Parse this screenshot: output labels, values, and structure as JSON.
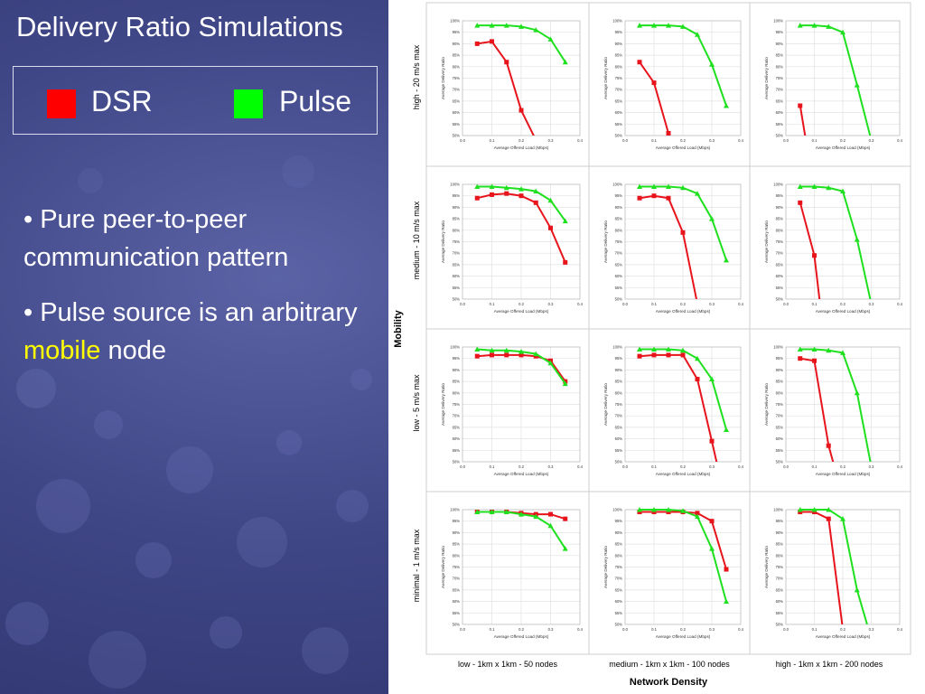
{
  "slide": {
    "title": "Delivery Ratio Simulations",
    "legend": [
      {
        "label": "DSR",
        "color": "#ff0000"
      },
      {
        "label": "Pulse",
        "color": "#00ff00"
      }
    ],
    "bullets": [
      {
        "prefix": "• Pure peer-to-peer communication pattern",
        "highlight": "",
        "suffix": ""
      },
      {
        "prefix": "• Pulse source is an arbitrary ",
        "highlight": "mobile",
        "suffix": " node"
      }
    ],
    "highlight_color": "#ffff00"
  },
  "chart_data": {
    "type": "line",
    "y_axis_title": "Mobility",
    "x_axis_title": "Network Density",
    "row_labels": [
      "high - 20 m/s max",
      "medium - 10 m/s max",
      "low - 5 m/s max",
      "minimal - 1 m/s max"
    ],
    "col_labels": [
      "low - 1km x 1km - 50 nodes",
      "medium - 1km x 1km - 100 nodes",
      "high - 1km x 1km - 200 nodes"
    ],
    "panel_xlabel": "Average Offered Load (Mbps)",
    "panel_ylabel": "Average Delivery Ratio",
    "x_ticks": [
      "0.0",
      "0.1",
      "0.2",
      "0.3",
      "0.4"
    ],
    "y_ticks": [
      "100%",
      "95%",
      "90%",
      "85%",
      "80%",
      "75%",
      "70%",
      "65%",
      "60%",
      "55%",
      "50%"
    ],
    "xlim": [
      0,
      0.4
    ],
    "ylim": [
      50,
      100
    ],
    "grid": true,
    "series_colors": {
      "DSR": "#e8141c",
      "Pulse": "#1fe01f"
    },
    "panels": [
      {
        "row": 0,
        "col": 0,
        "series": [
          {
            "name": "DSR",
            "x": [
              0.05,
              0.1,
              0.15,
              0.2,
              0.25
            ],
            "y": [
              90,
              91,
              82,
              61,
              48
            ]
          },
          {
            "name": "Pulse",
            "x": [
              0.05,
              0.1,
              0.15,
              0.2,
              0.25,
              0.3,
              0.35
            ],
            "y": [
              98,
              98,
              98,
              97.5,
              96,
              92,
              82
            ]
          }
        ]
      },
      {
        "row": 0,
        "col": 1,
        "series": [
          {
            "name": "DSR",
            "x": [
              0.05,
              0.1,
              0.15
            ],
            "y": [
              82,
              73,
              51
            ]
          },
          {
            "name": "Pulse",
            "x": [
              0.05,
              0.1,
              0.15,
              0.2,
              0.25,
              0.3,
              0.35
            ],
            "y": [
              98,
              98,
              98,
              97.5,
              94,
              81,
              63
            ]
          }
        ]
      },
      {
        "row": 0,
        "col": 2,
        "series": [
          {
            "name": "DSR",
            "x": [
              0.05,
              0.07
            ],
            "y": [
              63,
              48
            ]
          },
          {
            "name": "Pulse",
            "x": [
              0.05,
              0.1,
              0.15,
              0.2,
              0.25,
              0.3
            ],
            "y": [
              98,
              98,
              97.5,
              95,
              72,
              48
            ]
          }
        ]
      },
      {
        "row": 1,
        "col": 0,
        "series": [
          {
            "name": "DSR",
            "x": [
              0.05,
              0.1,
              0.15,
              0.2,
              0.25,
              0.3,
              0.35
            ],
            "y": [
              94,
              95.5,
              96,
              95,
              92,
              81,
              66
            ]
          },
          {
            "name": "Pulse",
            "x": [
              0.05,
              0.1,
              0.15,
              0.2,
              0.25,
              0.3,
              0.35
            ],
            "y": [
              99,
              99,
              98.5,
              98,
              97,
              93,
              84
            ]
          }
        ]
      },
      {
        "row": 1,
        "col": 1,
        "series": [
          {
            "name": "DSR",
            "x": [
              0.05,
              0.1,
              0.15,
              0.2,
              0.25
            ],
            "y": [
              94,
              95,
              94,
              79,
              48
            ]
          },
          {
            "name": "Pulse",
            "x": [
              0.05,
              0.1,
              0.15,
              0.2,
              0.25,
              0.3,
              0.35
            ],
            "y": [
              99,
              99,
              99,
              98.5,
              96,
              85,
              67
            ]
          }
        ]
      },
      {
        "row": 1,
        "col": 2,
        "series": [
          {
            "name": "DSR",
            "x": [
              0.05,
              0.1,
              0.12
            ],
            "y": [
              92,
              69,
              48
            ]
          },
          {
            "name": "Pulse",
            "x": [
              0.05,
              0.1,
              0.15,
              0.2,
              0.25,
              0.3
            ],
            "y": [
              99,
              99,
              98.5,
              97,
              76,
              48
            ]
          }
        ]
      },
      {
        "row": 2,
        "col": 0,
        "series": [
          {
            "name": "DSR",
            "x": [
              0.05,
              0.1,
              0.15,
              0.2,
              0.25,
              0.3,
              0.35
            ],
            "y": [
              96,
              96.5,
              96.5,
              96.5,
              96,
              94,
              85
            ]
          },
          {
            "name": "Pulse",
            "x": [
              0.05,
              0.1,
              0.15,
              0.2,
              0.25,
              0.3,
              0.35
            ],
            "y": [
              99,
              98.5,
              98.5,
              98,
              97,
              93,
              84
            ]
          }
        ]
      },
      {
        "row": 2,
        "col": 1,
        "series": [
          {
            "name": "DSR",
            "x": [
              0.05,
              0.1,
              0.15,
              0.2,
              0.25,
              0.3,
              0.32
            ],
            "y": [
              96,
              96.5,
              96.5,
              96.5,
              86,
              59,
              48
            ]
          },
          {
            "name": "Pulse",
            "x": [
              0.05,
              0.1,
              0.15,
              0.2,
              0.25,
              0.3,
              0.35
            ],
            "y": [
              99,
              99,
              99,
              98.5,
              95,
              86,
              64
            ]
          }
        ]
      },
      {
        "row": 2,
        "col": 2,
        "series": [
          {
            "name": "DSR",
            "x": [
              0.05,
              0.1,
              0.15,
              0.17
            ],
            "y": [
              95,
              94,
              57,
              48
            ]
          },
          {
            "name": "Pulse",
            "x": [
              0.05,
              0.1,
              0.15,
              0.2,
              0.25,
              0.3
            ],
            "y": [
              99,
              99,
              98.5,
              97.5,
              80,
              48
            ]
          }
        ]
      },
      {
        "row": 3,
        "col": 0,
        "series": [
          {
            "name": "DSR",
            "x": [
              0.05,
              0.1,
              0.15,
              0.2,
              0.25,
              0.3,
              0.35
            ],
            "y": [
              99,
              99,
              99,
              98.5,
              98,
              98,
              96
            ]
          },
          {
            "name": "Pulse",
            "x": [
              0.05,
              0.1,
              0.15,
              0.2,
              0.25,
              0.3,
              0.35
            ],
            "y": [
              99,
              99,
              99,
              98,
              97,
              93,
              83
            ]
          }
        ]
      },
      {
        "row": 3,
        "col": 1,
        "series": [
          {
            "name": "DSR",
            "x": [
              0.05,
              0.1,
              0.15,
              0.2,
              0.25,
              0.3,
              0.35
            ],
            "y": [
              99,
              99,
              99,
              99,
              98.5,
              95,
              74
            ]
          },
          {
            "name": "Pulse",
            "x": [
              0.05,
              0.1,
              0.15,
              0.2,
              0.25,
              0.3,
              0.35
            ],
            "y": [
              100,
              100,
              100,
              99.5,
              97,
              83,
              60
            ]
          }
        ]
      },
      {
        "row": 3,
        "col": 2,
        "series": [
          {
            "name": "DSR",
            "x": [
              0.05,
              0.1,
              0.15,
              0.2
            ],
            "y": [
              99,
              99,
              96,
              48
            ]
          },
          {
            "name": "Pulse",
            "x": [
              0.05,
              0.1,
              0.15,
              0.2,
              0.25,
              0.29
            ],
            "y": [
              100,
              100,
              100,
              96,
              65,
              48
            ]
          }
        ]
      }
    ]
  }
}
